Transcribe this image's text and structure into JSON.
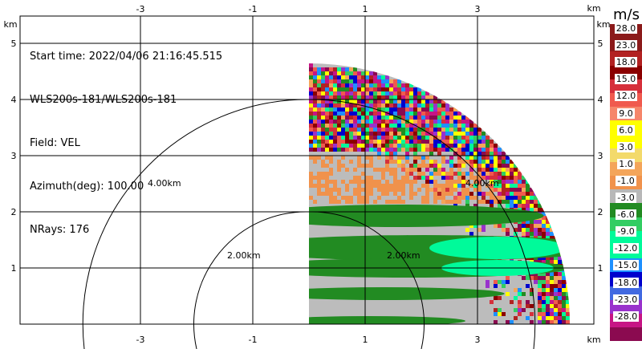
{
  "info": {
    "start_time": "Start time: 2022/04/06 21:16:45.515",
    "instrument": "WLS200s-181/WLS200s-181",
    "field": "Field: VEL",
    "azimuth": "Azimuth(deg): 100.00",
    "nrays": "NRays: 176"
  },
  "axes": {
    "unit_label": "km",
    "x_ticks": [
      "-3",
      "-1",
      "1",
      "3"
    ],
    "y_ticks": [
      "5",
      "4",
      "3",
      "2",
      "1"
    ]
  },
  "range_rings": [
    "2.00km",
    "4.00km",
    "2.00km",
    "4.00km"
  ],
  "colorbar": {
    "unit": "m/s",
    "labels": [
      "28.0",
      "23.0",
      "18.0",
      "15.0",
      "12.0",
      "9.0",
      "6.0",
      "3.0",
      "1.0",
      "-1.0",
      "-3.0",
      "-6.0",
      "-9.0",
      "-12.0",
      "-15.0",
      "-18.0",
      "-23.0",
      "-28.0"
    ],
    "colors": [
      "#8b1a1a",
      "#b22222",
      "#8b0000",
      "#d6303b",
      "#f05a4e",
      "#f6866a",
      "#ffff00",
      "#f3da6b",
      "#f4a55a",
      "#f0924c",
      "#b8b8b8",
      "#228b22",
      "#32cd62",
      "#00fa9a",
      "#1e90ff",
      "#0000cd",
      "#4169e1",
      "#9932cc",
      "#c71585",
      "#8b0a50"
    ]
  }
}
